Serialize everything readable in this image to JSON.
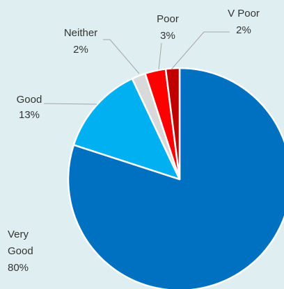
{
  "chart_data": {
    "type": "pie",
    "categories": [
      "Very Good",
      "Good",
      "Neither",
      "Poor",
      "V Poor"
    ],
    "values": [
      80,
      13,
      2,
      3,
      2
    ],
    "value_labels": [
      "80%",
      "13%",
      "2%",
      "3%",
      "2%"
    ],
    "colors": [
      "#0070c0",
      "#00b0f0",
      "#d9d9d9",
      "#ff0000",
      "#c00000"
    ],
    "legend": "none"
  }
}
